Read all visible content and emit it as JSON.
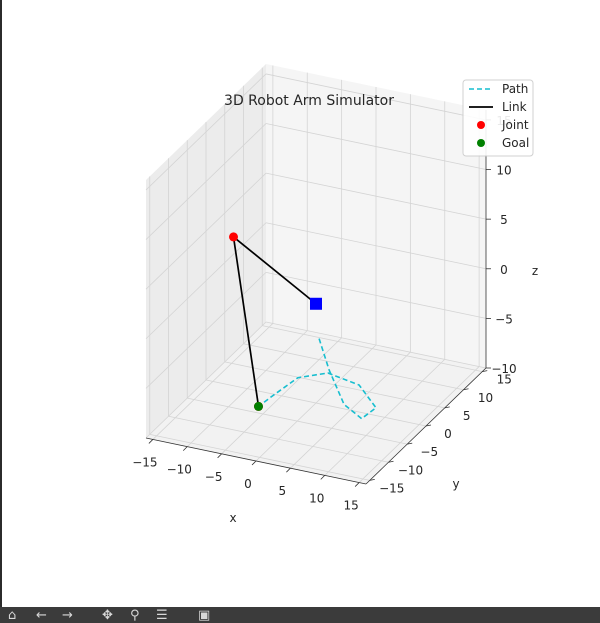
{
  "toolbar": {
    "items": [
      {
        "icon": "home-icon",
        "glyph": "⌂"
      },
      {
        "icon": "back-arrow-icon",
        "glyph": "←"
      },
      {
        "icon": "forward-arrow-icon",
        "glyph": "→"
      },
      {
        "icon": "pan-icon",
        "glyph": "✥"
      },
      {
        "icon": "zoom-icon",
        "glyph": "⚲"
      },
      {
        "icon": "configure-subplots-icon",
        "glyph": "☰"
      },
      {
        "icon": "save-icon",
        "glyph": "▣"
      }
    ]
  },
  "chart_data": {
    "type": "3d-line-scatter",
    "title": "3D Robot Arm Simulator",
    "xlabel": "x",
    "ylabel": "y",
    "zlabel": "z",
    "xlim": [
      -16,
      16
    ],
    "ylim": [
      -16,
      16
    ],
    "zlim": [
      -10,
      16
    ],
    "xticks": [
      -15,
      -10,
      -5,
      0,
      5,
      10,
      15
    ],
    "yticks": [
      -15,
      -10,
      -5,
      0,
      5,
      10,
      15
    ],
    "zticks": [
      -10,
      -5,
      0,
      5,
      10,
      15
    ],
    "xtick_labels": [
      "−15",
      "−10",
      "−5",
      "0",
      "5",
      "10",
      "15"
    ],
    "ytick_labels": [
      "−15",
      "−10",
      "−5",
      "0",
      "5",
      "10",
      "15"
    ],
    "ztick_labels": [
      "−10",
      "−5",
      "0",
      "5",
      "10",
      "15"
    ],
    "grid": true,
    "legend_position": "top-right",
    "legend": [
      {
        "label": "Path",
        "kind": "dashed-line",
        "color": "#17becf"
      },
      {
        "label": "Link",
        "kind": "line",
        "color": "#000000"
      },
      {
        "label": "Joint",
        "kind": "marker",
        "color": "#ff0000"
      },
      {
        "label": "Goal",
        "kind": "marker",
        "color": "#008000"
      }
    ],
    "base": {
      "x": 0,
      "y": 0,
      "z": 0,
      "color": "#0000ff",
      "marker": "square"
    },
    "joints": [
      {
        "x": -12,
        "y": 0,
        "z": 5
      },
      {
        "x": -4,
        "y": -8,
        "z": -8
      }
    ],
    "goal": {
      "x": -4,
      "y": -8,
      "z": -8
    },
    "path": [
      {
        "x": 1.0,
        "y": -1.0,
        "z": -3.0
      },
      {
        "x": 3.0,
        "y": -2.0,
        "z": -5.5
      },
      {
        "x": 6.0,
        "y": -3.5,
        "z": -8.0
      },
      {
        "x": 8.0,
        "y": -2.5,
        "z": -9.5
      },
      {
        "x": 9.0,
        "y": -0.5,
        "z": -9.0
      },
      {
        "x": 6.0,
        "y": 0.5,
        "z": -7.5
      },
      {
        "x": 2.0,
        "y": -0.5,
        "z": -6.5
      },
      {
        "x": -1.0,
        "y": -3.0,
        "z": -6.5
      },
      {
        "x": -3.0,
        "y": -6.0,
        "z": -7.5
      },
      {
        "x": -4.0,
        "y": -8.0,
        "z": -8.0
      }
    ]
  }
}
